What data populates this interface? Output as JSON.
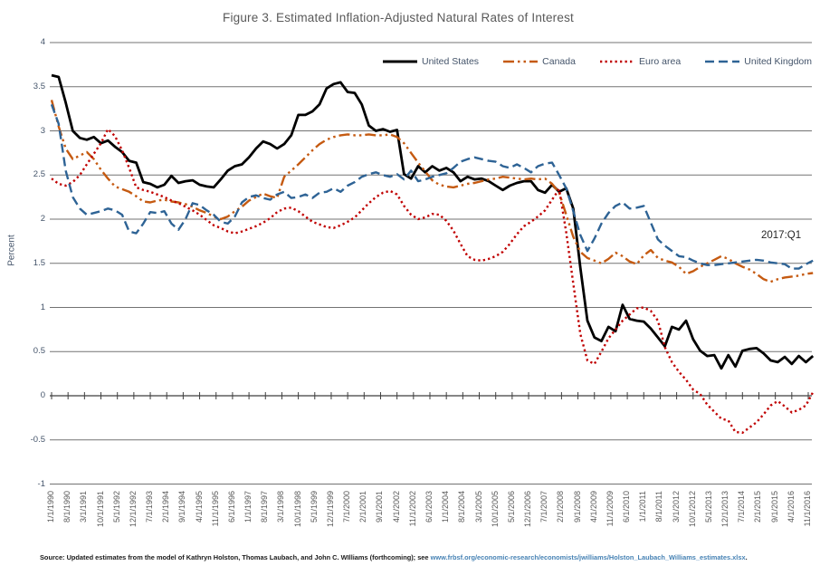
{
  "title": "Figure 3.  Estimated Inflation-Adjusted Natural Rates of Interest",
  "annotation": "2017:Q1",
  "source": {
    "prefix": "Source: Updated estimates from the model of Kathryn Holston, Thomas Laubach, and John C. WIlliams (forthcoming); see ",
    "link": "www.frbsf.org/economic-research/economists/jwilliams/Holston_Laubach_Williams_estimates.xlsx",
    "suffix": "."
  },
  "colors": {
    "united_states": "#000000",
    "canada": "#C55A11",
    "euro_area": "#C00000",
    "united_kingdom": "#2E6395",
    "gridline": "#737373",
    "zero_axis": "#3F3F3F",
    "title_text": "#595959",
    "axis_text": "#44546A",
    "x_axis_text": "#595959",
    "annotation_text": "#262626",
    "source_text": "#1A1A1A",
    "source_link": "#4682B4"
  },
  "chart_data": {
    "type": "line",
    "title": "Figure 3.  Estimated Inflation-Adjusted Natural Rates of Interest",
    "xlabel": "",
    "ylabel": "Percent",
    "ylim": [
      -1,
      4
    ],
    "grid": "horizontal",
    "legend_position": "top",
    "frequency": "quarterly",
    "x_start": "1990:Q1",
    "x_end": "2017:Q1",
    "y_tick_labels": [
      "4",
      "3.5",
      "3",
      "2.5",
      "2",
      "1.5",
      "1",
      "0.5",
      "0",
      "-0.5",
      "-1"
    ],
    "x_tick_labels": [
      "1/1/1990",
      "8/1/1990",
      "3/1/1991",
      "10/1/1991",
      "5/1/1992",
      "12/1/1992",
      "7/1/1993",
      "2/1/1994",
      "9/1/1994",
      "4/1/1995",
      "11/1/1995",
      "6/1/1996",
      "1/1/1997",
      "8/1/1997",
      "3/1/1998",
      "10/1/1998",
      "5/1/1999",
      "12/1/1999",
      "7/1/2000",
      "2/1/2001",
      "9/1/2001",
      "4/1/2002",
      "11/1/2002",
      "6/1/2003",
      "1/1/2004",
      "8/1/2004",
      "3/1/2005",
      "10/1/2005",
      "5/1/2006",
      "12/1/2006",
      "7/1/2007",
      "2/1/2008",
      "9/1/2008",
      "4/1/2009",
      "11/1/2009",
      "6/1/2010",
      "1/1/2011",
      "8/1/2011",
      "3/1/2012",
      "10/1/2012",
      "5/1/2013",
      "12/1/2013",
      "7/1/2014",
      "2/1/2015",
      "9/1/2015",
      "4/1/2016",
      "11/1/2016"
    ],
    "series": [
      {
        "name": "United States",
        "color": "#000000",
        "dash": "solid",
        "values": [
          3.63,
          3.61,
          3.32,
          3.0,
          2.92,
          2.9,
          2.93,
          2.86,
          2.89,
          2.82,
          2.76,
          2.66,
          2.64,
          2.42,
          2.4,
          2.36,
          2.39,
          2.49,
          2.41,
          2.43,
          2.44,
          2.39,
          2.37,
          2.36,
          2.45,
          2.55,
          2.6,
          2.62,
          2.7,
          2.8,
          2.88,
          2.85,
          2.8,
          2.85,
          2.95,
          3.18,
          3.18,
          3.22,
          3.3,
          3.48,
          3.53,
          3.55,
          3.44,
          3.43,
          3.3,
          3.06,
          3.0,
          3.02,
          2.99,
          3.01,
          2.51,
          2.46,
          2.6,
          2.53,
          2.6,
          2.55,
          2.58,
          2.53,
          2.43,
          2.48,
          2.45,
          2.46,
          2.43,
          2.38,
          2.33,
          2.38,
          2.41,
          2.43,
          2.43,
          2.33,
          2.3,
          2.39,
          2.31,
          2.35,
          2.12,
          1.45,
          0.85,
          0.66,
          0.62,
          0.78,
          0.73,
          1.03,
          0.87,
          0.85,
          0.84,
          0.76,
          0.66,
          0.56,
          0.78,
          0.75,
          0.85,
          0.64,
          0.51,
          0.45,
          0.46,
          0.31,
          0.46,
          0.33,
          0.51,
          0.53,
          0.54,
          0.48,
          0.4,
          0.38,
          0.44,
          0.36,
          0.45,
          0.38,
          0.45
        ]
      },
      {
        "name": "Canada",
        "color": "#C55A11",
        "dash": "dash-dot-dot",
        "values": [
          3.35,
          3.05,
          2.8,
          2.68,
          2.72,
          2.76,
          2.68,
          2.56,
          2.46,
          2.37,
          2.34,
          2.31,
          2.26,
          2.2,
          2.19,
          2.21,
          2.22,
          2.2,
          2.19,
          2.17,
          2.14,
          2.1,
          2.07,
          2.03,
          2.0,
          2.03,
          2.09,
          2.14,
          2.21,
          2.25,
          2.29,
          2.26,
          2.24,
          2.48,
          2.55,
          2.62,
          2.7,
          2.78,
          2.85,
          2.9,
          2.93,
          2.95,
          2.96,
          2.95,
          2.95,
          2.96,
          2.95,
          2.95,
          2.96,
          2.93,
          2.86,
          2.75,
          2.64,
          2.54,
          2.44,
          2.39,
          2.37,
          2.36,
          2.38,
          2.4,
          2.41,
          2.43,
          2.45,
          2.46,
          2.48,
          2.47,
          2.46,
          2.45,
          2.46,
          2.45,
          2.46,
          2.4,
          2.3,
          2.05,
          1.8,
          1.63,
          1.56,
          1.53,
          1.5,
          1.55,
          1.62,
          1.58,
          1.52,
          1.49,
          1.59,
          1.65,
          1.56,
          1.53,
          1.51,
          1.46,
          1.38,
          1.41,
          1.46,
          1.5,
          1.54,
          1.58,
          1.55,
          1.5,
          1.46,
          1.43,
          1.38,
          1.32,
          1.29,
          1.32,
          1.34,
          1.35,
          1.36,
          1.38,
          1.39
        ]
      },
      {
        "name": "Euro area",
        "color": "#C00000",
        "dash": "dotted",
        "values": [
          2.46,
          2.4,
          2.38,
          2.42,
          2.5,
          2.62,
          2.74,
          2.86,
          3.02,
          2.94,
          2.78,
          2.58,
          2.36,
          2.33,
          2.31,
          2.28,
          2.25,
          2.21,
          2.18,
          2.14,
          2.1,
          2.05,
          1.99,
          1.93,
          1.9,
          1.86,
          1.84,
          1.86,
          1.89,
          1.92,
          1.96,
          2.01,
          2.08,
          2.12,
          2.13,
          2.09,
          2.03,
          1.97,
          1.94,
          1.91,
          1.9,
          1.93,
          1.97,
          2.02,
          2.1,
          2.18,
          2.25,
          2.3,
          2.32,
          2.28,
          2.15,
          2.05,
          2.0,
          2.02,
          2.06,
          2.05,
          1.98,
          1.87,
          1.72,
          1.58,
          1.54,
          1.53,
          1.55,
          1.58,
          1.63,
          1.72,
          1.83,
          1.92,
          1.97,
          2.03,
          2.1,
          2.22,
          2.34,
          1.85,
          1.27,
          0.7,
          0.4,
          0.36,
          0.5,
          0.65,
          0.75,
          0.85,
          0.92,
          0.99,
          1.0,
          0.96,
          0.85,
          0.55,
          0.38,
          0.27,
          0.18,
          0.07,
          0.02,
          -0.1,
          -0.18,
          -0.26,
          -0.28,
          -0.41,
          -0.42,
          -0.36,
          -0.3,
          -0.21,
          -0.11,
          -0.06,
          -0.12,
          -0.19,
          -0.16,
          -0.11,
          0.04
        ]
      },
      {
        "name": "United Kingdom",
        "color": "#2E6395",
        "dash": "dashed",
        "values": [
          3.3,
          3.08,
          2.55,
          2.25,
          2.12,
          2.05,
          2.07,
          2.09,
          2.12,
          2.1,
          2.05,
          1.86,
          1.84,
          1.95,
          2.08,
          2.07,
          2.09,
          1.95,
          1.88,
          2.0,
          2.18,
          2.16,
          2.1,
          2.05,
          1.97,
          1.95,
          2.03,
          2.19,
          2.25,
          2.27,
          2.24,
          2.22,
          2.28,
          2.31,
          2.24,
          2.25,
          2.28,
          2.24,
          2.3,
          2.31,
          2.35,
          2.31,
          2.38,
          2.42,
          2.48,
          2.51,
          2.53,
          2.5,
          2.48,
          2.51,
          2.45,
          2.55,
          2.43,
          2.45,
          2.48,
          2.5,
          2.52,
          2.58,
          2.65,
          2.68,
          2.7,
          2.68,
          2.66,
          2.65,
          2.6,
          2.58,
          2.62,
          2.58,
          2.53,
          2.6,
          2.63,
          2.64,
          2.5,
          2.35,
          2.09,
          1.82,
          1.64,
          1.78,
          1.95,
          2.07,
          2.15,
          2.19,
          2.12,
          2.13,
          2.15,
          1.96,
          1.77,
          1.7,
          1.64,
          1.58,
          1.57,
          1.53,
          1.5,
          1.48,
          1.48,
          1.49,
          1.5,
          1.51,
          1.52,
          1.53,
          1.54,
          1.53,
          1.51,
          1.5,
          1.49,
          1.44,
          1.44,
          1.49,
          1.53
        ]
      }
    ]
  },
  "legend": {
    "items": [
      {
        "label": "United States"
      },
      {
        "label": "Canada"
      },
      {
        "label": "Euro area"
      },
      {
        "label": "United Kingdom"
      }
    ]
  }
}
